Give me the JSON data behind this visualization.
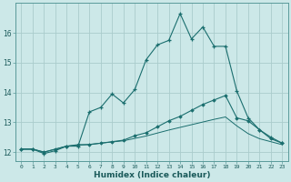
{
  "xlabel": "Humidex (Indice chaleur)",
  "background_color": "#cce8e8",
  "grid_color": "#aacccc",
  "line_color": "#1a6e6e",
  "xlim": [
    -0.5,
    23.5
  ],
  "ylim": [
    11.7,
    17.0
  ],
  "yticks": [
    12,
    13,
    14,
    15,
    16
  ],
  "xticks": [
    0,
    1,
    2,
    3,
    4,
    5,
    6,
    7,
    8,
    9,
    10,
    11,
    12,
    13,
    14,
    15,
    16,
    17,
    18,
    19,
    20,
    21,
    22,
    23
  ],
  "xtick_labels": [
    "0",
    "1",
    "2",
    "3",
    "4",
    "5",
    "6",
    "7",
    "8",
    "9",
    "10",
    "11",
    "12",
    "13",
    "14",
    "15",
    "16",
    "17",
    "18",
    "19",
    "20",
    "21",
    "22",
    "23"
  ],
  "series": {
    "line1_x": [
      0,
      1,
      2,
      3,
      4,
      5,
      6,
      7,
      8,
      9,
      10,
      11,
      12,
      13,
      14,
      15,
      16,
      17,
      18,
      19,
      20,
      21,
      22,
      23
    ],
    "line1_y": [
      12.1,
      12.1,
      11.95,
      12.05,
      12.2,
      12.2,
      13.35,
      13.5,
      13.95,
      13.65,
      14.1,
      15.1,
      15.6,
      15.75,
      16.65,
      15.8,
      16.2,
      15.55,
      15.55,
      14.05,
      13.15,
      12.75,
      12.5,
      12.3
    ],
    "line2_x": [
      0,
      1,
      2,
      3,
      4,
      5,
      6,
      7,
      8,
      9,
      10,
      11,
      12,
      13,
      14,
      15,
      16,
      17,
      18,
      19,
      20,
      21,
      22,
      23
    ],
    "line2_y": [
      12.1,
      12.1,
      12.0,
      12.1,
      12.2,
      12.25,
      12.25,
      12.3,
      12.35,
      12.4,
      12.55,
      12.65,
      12.85,
      13.05,
      13.2,
      13.4,
      13.6,
      13.75,
      13.9,
      13.15,
      13.05,
      12.75,
      12.45,
      12.3
    ],
    "line3_x": [
      0,
      1,
      2,
      3,
      4,
      5,
      6,
      7,
      8,
      9,
      10,
      11,
      12,
      13,
      14,
      15,
      16,
      17,
      18,
      19,
      20,
      21,
      22,
      23
    ],
    "line3_y": [
      12.1,
      12.1,
      12.0,
      12.1,
      12.2,
      12.23,
      12.26,
      12.3,
      12.34,
      12.38,
      12.46,
      12.54,
      12.64,
      12.74,
      12.83,
      12.92,
      13.01,
      13.1,
      13.18,
      12.88,
      12.62,
      12.45,
      12.35,
      12.25
    ]
  }
}
